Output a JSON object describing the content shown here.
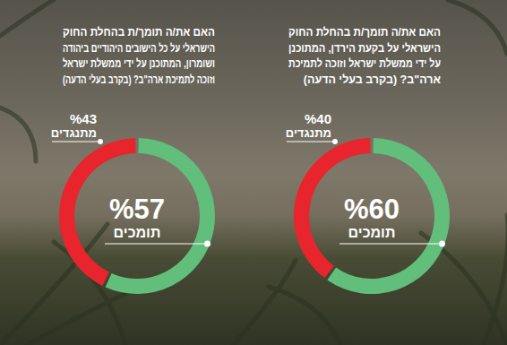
{
  "chart_data": [
    {
      "type": "pie",
      "title": "האם את/ה תומך/ת בהחלת החוק\nהישראלי על בקעת הירדן, המתוכנן\nעל ידי ממשלת ישראל וזוכה לתמיכת\nארה\"ב? (בקרב בעלי הדעה)",
      "categories": [
        "תומכים",
        "מתנגדים"
      ],
      "values": [
        60,
        40
      ],
      "value_labels": [
        "%60",
        "%40"
      ],
      "colors": [
        "#62be7b",
        "#e8252c"
      ],
      "data_labels": true
    },
    {
      "type": "pie",
      "title": "האם את/ה תומך/ת בהחלת החוק\nהישראלי על כל הישובים היהודיים ביהודה\nושומרון, המתוכנן על ידי ממשלת ישראל\nוזוכה לתמיכת ארה\"ב? (בקרב בעלי הדעה)",
      "categories": [
        "תומכים",
        "מתנגדים"
      ],
      "values": [
        57,
        43
      ],
      "value_labels": [
        "%57",
        "%43"
      ],
      "colors": [
        "#62be7b",
        "#e8252c"
      ],
      "data_labels": true
    }
  ]
}
